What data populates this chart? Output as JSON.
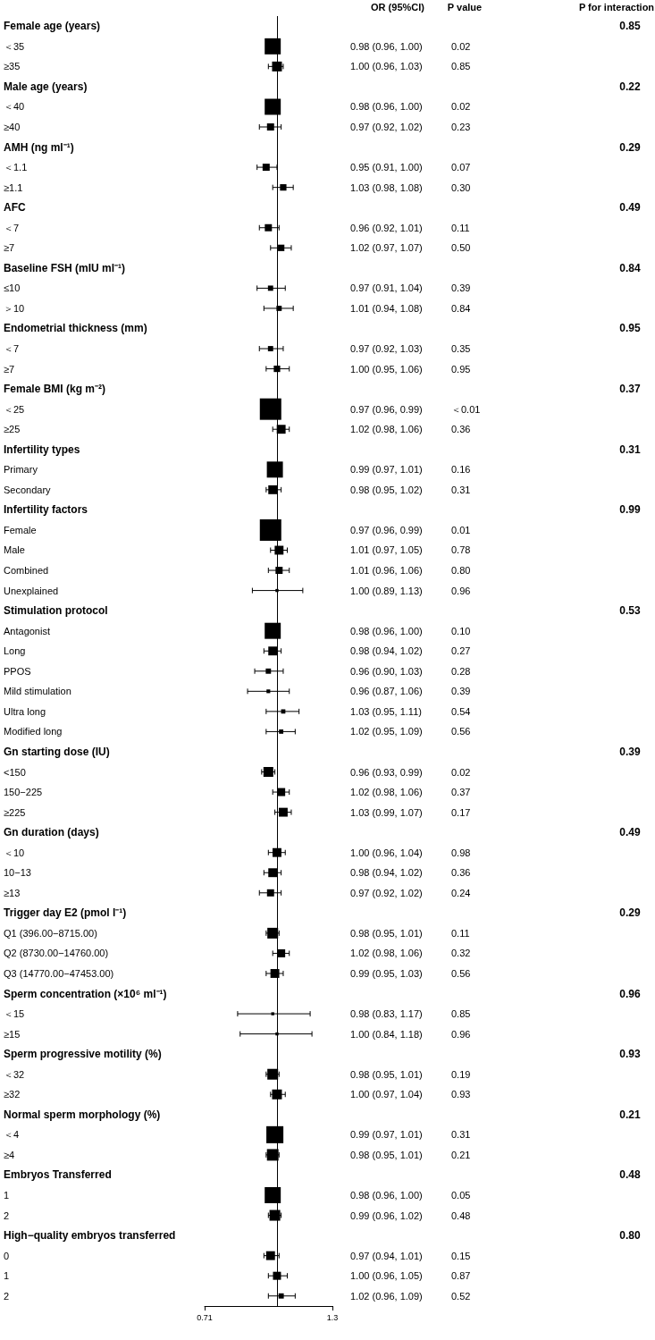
{
  "chart_data": {
    "type": "bubble",
    "orientation": "horizontal",
    "marker": "square",
    "log": "x",
    "xlim": [
      0.71,
      1.3
    ],
    "xticks": [
      0.71,
      1.3
    ],
    "categories": [
      "Female age (years)",
      "＜35",
      "≥35",
      "Male age (years)",
      "＜40",
      "≥40",
      "AMH (ng ml⁻¹)",
      "＜1.1",
      "≥1.1",
      "AFC",
      "＜7",
      "≥7",
      "Baseline FSH (mIU ml⁻¹)",
      "≤10",
      "＞10",
      "Endometrial thickness (mm)",
      "＜7",
      "≥7",
      "Female BMI (kg m⁻²)",
      "＜25",
      "≥25",
      "Infertility types",
      "Primary",
      "Secondary",
      "Infertility factors",
      "Female",
      "Male",
      "Combined",
      "Unexplained",
      "Stimulation protocol",
      "Antagonist",
      "Long",
      "PPOS",
      "Mild stimulation",
      "Ultra long",
      "Modified long",
      "Gn starting dose (IU)",
      "<150",
      "150−225",
      "≥225",
      "Gn duration (days)",
      "＜10",
      "10−13",
      "≥13",
      "Trigger day E2 (pmol l⁻¹)",
      "Q1 (396.00−8715.00)",
      "Q2 (8730.00−14760.00)",
      "Q3 (14770.00−47453.00)",
      "Sperm concentration (×10⁶ ml⁻¹)",
      "＜15",
      "≥15",
      "Sperm progressive motility (%)",
      "＜32",
      "≥32",
      "Normal sperm morphology (%)",
      "＜4",
      "≥4",
      "Embryos Transferred",
      "1",
      "2",
      "High−quality embryos transferred",
      "0",
      "1",
      "2"
    ],
    "series": [
      {
        "color": "#000000",
        "values": [
          null,
          0.98,
          1.0,
          null,
          0.98,
          0.97,
          null,
          0.95,
          1.03,
          null,
          0.96,
          1.02,
          null,
          0.97,
          1.01,
          null,
          0.97,
          1.0,
          null,
          0.97,
          1.02,
          null,
          0.99,
          0.98,
          null,
          0.97,
          1.01,
          1.01,
          1.0,
          null,
          0.98,
          0.98,
          0.96,
          0.96,
          1.03,
          1.02,
          null,
          0.96,
          1.02,
          1.03,
          null,
          1.0,
          0.98,
          0.97,
          null,
          0.98,
          1.02,
          0.99,
          null,
          0.98,
          1.0,
          null,
          0.98,
          1.0,
          null,
          0.99,
          0.98,
          null,
          0.98,
          0.99,
          null,
          0.97,
          1.0,
          1.02
        ],
        "errors": [
          null,
          null,
          [
            0.96,
            1.03
          ],
          null,
          null,
          [
            0.92,
            1.02
          ],
          null,
          [
            0.91,
            1.0
          ],
          [
            0.98,
            1.08
          ],
          null,
          [
            0.92,
            1.01
          ],
          [
            0.97,
            1.07
          ],
          null,
          [
            0.91,
            1.04
          ],
          [
            0.94,
            1.08
          ],
          null,
          [
            0.92,
            1.03
          ],
          [
            0.95,
            1.06
          ],
          null,
          null,
          [
            0.98,
            1.06
          ],
          null,
          null,
          [
            0.95,
            1.02
          ],
          null,
          null,
          [
            0.97,
            1.05
          ],
          [
            0.96,
            1.06
          ],
          [
            0.89,
            1.13
          ],
          null,
          null,
          [
            0.94,
            1.02
          ],
          [
            0.9,
            1.03
          ],
          [
            0.87,
            1.06
          ],
          [
            0.95,
            1.11
          ],
          [
            0.95,
            1.09
          ],
          null,
          [
            0.93,
            0.99
          ],
          [
            0.98,
            1.06
          ],
          [
            0.99,
            1.07
          ],
          null,
          [
            0.96,
            1.04
          ],
          [
            0.94,
            1.02
          ],
          [
            0.92,
            1.02
          ],
          null,
          [
            0.95,
            1.01
          ],
          [
            0.98,
            1.06
          ],
          [
            0.95,
            1.03
          ],
          null,
          [
            0.83,
            1.17
          ],
          [
            0.84,
            1.18
          ],
          null,
          [
            0.95,
            1.01
          ],
          [
            0.97,
            1.04
          ],
          null,
          null,
          [
            0.95,
            1.01
          ],
          null,
          null,
          [
            0.96,
            1.02
          ],
          null,
          [
            0.94,
            1.01
          ],
          [
            0.96,
            1.05
          ],
          [
            0.96,
            1.09
          ]
        ],
        "sizes": [
          null,
          0.56,
          0.21,
          null,
          0.56,
          0.11,
          null,
          0.11,
          0.09,
          null,
          0.11,
          0.09,
          null,
          0.06,
          0.06,
          null,
          0.06,
          0.09,
          null,
          1,
          0.17,
          null,
          0.56,
          0.17,
          null,
          1,
          0.17,
          0.11,
          0.02,
          null,
          0.56,
          0.17,
          0.06,
          0.03,
          0.04,
          0.04,
          null,
          0.21,
          0.14,
          0.17,
          null,
          0.17,
          0.17,
          0.11,
          null,
          0.25,
          0.14,
          0.17,
          null,
          0.02,
          0.02,
          null,
          0.25,
          0.21,
          null,
          0.63,
          0.29,
          null,
          0.56,
          0.25,
          null,
          0.17,
          0.14,
          0.06
        ],
        "value_labels": [
          null,
          "0.98 (0.96, 1.00)",
          "1.00 (0.96, 1.03)",
          null,
          "0.98 (0.96, 1.00)",
          "0.97 (0.92, 1.02)",
          null,
          "0.95 (0.91, 1.00)",
          "1.03 (0.98, 1.08)",
          null,
          "0.96 (0.92, 1.01)",
          "1.02 (0.97, 1.07)",
          null,
          "0.97 (0.91, 1.04)",
          "1.01 (0.94, 1.08)",
          null,
          "0.97 (0.92, 1.03)",
          "1.00 (0.95, 1.06)",
          null,
          "0.97 (0.96, 0.99)",
          "1.02 (0.98, 1.06)",
          null,
          "0.99 (0.97, 1.01)",
          "0.98 (0.95, 1.02)",
          null,
          "0.97 (0.96, 0.99)",
          "1.01 (0.97, 1.05)",
          "1.01 (0.96, 1.06)",
          "1.00 (0.89, 1.13)",
          null,
          "0.98 (0.96, 1.00)",
          "0.98 (0.94, 1.02)",
          "0.96 (0.90, 1.03)",
          "0.96 (0.87, 1.06)",
          "1.03 (0.95, 1.11)",
          "1.02 (0.95, 1.09)",
          null,
          "0.96 (0.93, 0.99)",
          "1.02 (0.98, 1.06)",
          "1.03 (0.99, 1.07)",
          null,
          "1.00 (0.96, 1.04)",
          "0.98 (0.94, 1.02)",
          "0.97 (0.92, 1.02)",
          null,
          "0.98 (0.95, 1.01)",
          "1.02 (0.98, 1.06)",
          "0.99 (0.95, 1.03)",
          null,
          "0.98 (0.83, 1.17)",
          "1.00 (0.84, 1.18)",
          null,
          "0.98 (0.95, 1.01)",
          "1.00 (0.97, 1.04)",
          null,
          "0.99 (0.97, 1.01)",
          "0.98 (0.95, 1.01)",
          null,
          "0.98 (0.96, 1.00)",
          "0.99 (0.96, 1.02)",
          null,
          "0.97 (0.94, 1.01)",
          "1.00 (0.96, 1.05)",
          "1.02 (0.96, 1.09)"
        ]
      }
    ],
    "ref_lines": [
      {
        "axis": "x",
        "value": 1
      }
    ],
    "annotations": [
      "OR (95%CI)",
      "P value",
      "P for interaction",
      "0.85",
      "0.02",
      "0.85",
      "0.22",
      "0.02",
      "0.23",
      "0.29",
      "0.07",
      "0.30",
      "0.49",
      "0.11",
      "0.50",
      "0.84",
      "0.39",
      "0.84",
      "0.95",
      "0.35",
      "0.95",
      "0.37",
      "＜0.01",
      "0.36",
      "0.31",
      "0.16",
      "0.31",
      "0.99",
      "0.01",
      "0.78",
      "0.80",
      "0.96",
      "0.53",
      "0.10",
      "0.27",
      "0.28",
      "0.39",
      "0.54",
      "0.56",
      "0.39",
      "0.02",
      "0.37",
      "0.17",
      "0.49",
      "0.98",
      "0.36",
      "0.24",
      "0.29",
      "0.11",
      "0.32",
      "0.56",
      "0.96",
      "0.85",
      "0.96",
      "0.93",
      "0.19",
      "0.93",
      "0.21",
      "0.31",
      "0.21",
      "0.48",
      "0.05",
      "0.48",
      "0.80",
      "0.15",
      "0.87",
      "0.52"
    ]
  }
}
